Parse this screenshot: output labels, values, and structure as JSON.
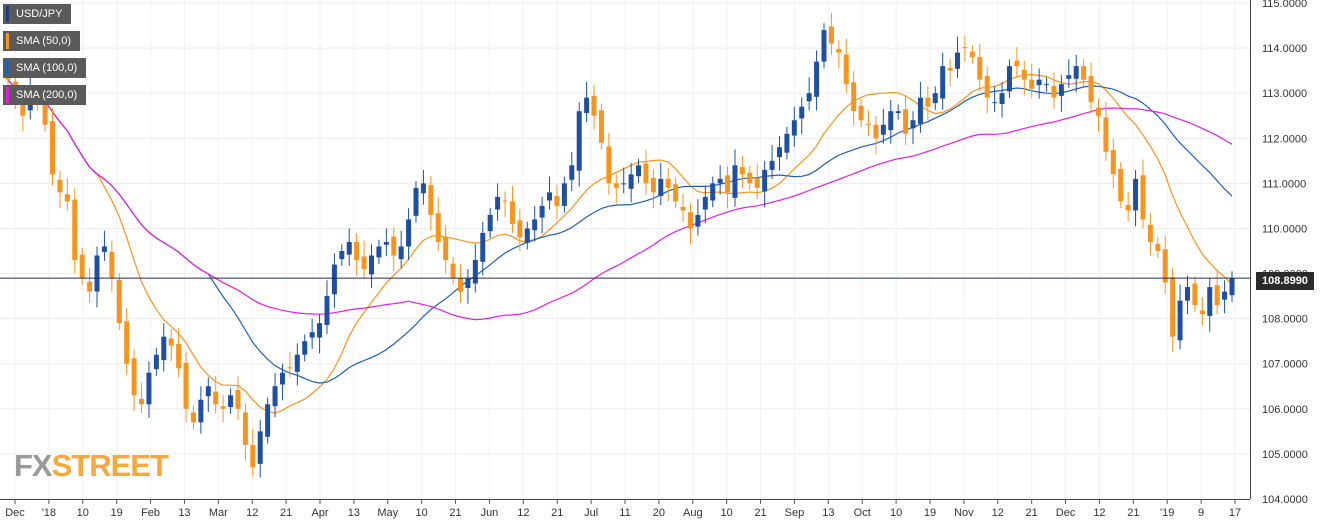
{
  "chart_data": {
    "type": "candlestick",
    "instrument": "USD/JPY",
    "legend": [
      {
        "label": "USD/JPY",
        "color": "#1f3d7a"
      },
      {
        "label": "SMA (50,0)",
        "color": "#f7941d"
      },
      {
        "label": "SMA (100,0)",
        "color": "#1f5fb5"
      },
      {
        "label": "SMA (200,0)",
        "color": "#e01fe0"
      }
    ],
    "colors": {
      "up": "#1f4fa0",
      "down": "#f7941d",
      "sma50": "#f7941d",
      "sma100": "#1f5fb5",
      "sma200": "#e01fe0"
    },
    "last_price": "108.8990",
    "last_price_value": 108.899,
    "ylim": [
      104.0,
      115.0
    ],
    "y_ticks": [
      "115.0000",
      "114.0000",
      "113.0000",
      "112.0000",
      "111.0000",
      "110.0000",
      "109.0000",
      "108.0000",
      "107.0000",
      "106.0000",
      "105.0000",
      "104.0000"
    ],
    "x_ticks": [
      "Dec",
      "'18",
      "10",
      "19",
      "Feb",
      "13",
      "Mar",
      "12",
      "21",
      "Apr",
      "13",
      "May",
      "10",
      "21",
      "Jun",
      "12",
      "21",
      "Jul",
      "11",
      "20",
      "Aug",
      "10",
      "21",
      "Sep",
      "13",
      "Oct",
      "10",
      "19",
      "Nov",
      "12",
      "21",
      "Dec",
      "12",
      "21",
      "'19",
      "9",
      "17"
    ],
    "grid": true,
    "legend_position": "top-left",
    "close_series": [
      113.3,
      112.9,
      112.5,
      113.0,
      112.9,
      112.3,
      111.2,
      110.8,
      110.6,
      109.3,
      108.9,
      108.6,
      109.4,
      109.6,
      108.9,
      107.9,
      107.0,
      106.3,
      106.1,
      106.8,
      107.2,
      107.6,
      107.4,
      106.9,
      106.0,
      105.7,
      106.2,
      106.5,
      106.1,
      106.0,
      106.3,
      106.0,
      105.2,
      104.7,
      105.5,
      106.1,
      106.5,
      106.8,
      106.9,
      107.2,
      107.5,
      107.7,
      107.9,
      108.5,
      109.2,
      109.5,
      109.7,
      109.3,
      109.1,
      109.4,
      109.6,
      109.7,
      109.4,
      109.6,
      110.2,
      110.9,
      111.0,
      110.3,
      109.7,
      109.3,
      108.9,
      108.6,
      108.9,
      109.3,
      109.9,
      110.3,
      110.7,
      110.6,
      110.1,
      109.8,
      110.0,
      110.2,
      110.5,
      110.8,
      110.5,
      111.0,
      111.4,
      112.6,
      112.9,
      112.5,
      111.9,
      111.0,
      110.9,
      111.0,
      111.2,
      111.4,
      111.0,
      110.8,
      111.1,
      110.9,
      110.6,
      110.4,
      110.0,
      110.3,
      110.7,
      111.0,
      111.1,
      110.8,
      111.4,
      111.2,
      111.0,
      110.9,
      111.3,
      111.5,
      111.8,
      112.1,
      112.4,
      112.7,
      113.0,
      113.7,
      114.4,
      114.1,
      113.9,
      113.2,
      112.6,
      112.4,
      112.3,
      112.0,
      112.3,
      112.6,
      112.6,
      112.1,
      112.4,
      112.9,
      112.7,
      113.0,
      113.6,
      113.5,
      113.9,
      114.0,
      113.8,
      113.3,
      112.9,
      112.8,
      113.0,
      113.6,
      113.6,
      113.3,
      113.1,
      113.3,
      113.2,
      112.9,
      113.2,
      113.4,
      113.6,
      113.3,
      112.8,
      112.5,
      111.7,
      111.2,
      110.6,
      110.4,
      111.1,
      110.2,
      109.7,
      109.5,
      108.8,
      107.6,
      108.4,
      108.7,
      108.3,
      108.1,
      108.7,
      108.3,
      108.6,
      108.9
    ]
  }
}
